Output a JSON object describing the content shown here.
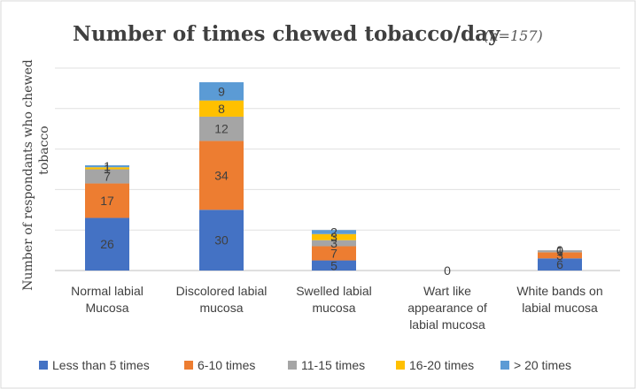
{
  "chart_data": {
    "type": "bar",
    "stacked": true,
    "title": "Number of times chewed tobacco/day",
    "subtitle": "(n=157)",
    "ylabel": "Number of respondants who chewed tobacco",
    "xlabel": "",
    "ylim": [
      0,
      100
    ],
    "grid": true,
    "legend_position": "bottom",
    "categories": [
      [
        "Normal labial",
        "Mucosa"
      ],
      [
        "Discolored labial",
        "mucosa"
      ],
      [
        "Swelled labial",
        "mucosa"
      ],
      [
        "Wart like",
        "appearance of",
        "labial mucosa"
      ],
      [
        "White bands on",
        "labial mucosa"
      ]
    ],
    "series": [
      {
        "name": "Less than 5 times",
        "color": "#4472c4",
        "values": [
          26,
          30,
          5,
          0,
          6
        ]
      },
      {
        "name": "6-10 times",
        "color": "#ed7d31",
        "values": [
          17,
          34,
          7,
          0,
          3
        ]
      },
      {
        "name": "11-15 times",
        "color": "#a5a5a5",
        "values": [
          7,
          12,
          3,
          0,
          1
        ]
      },
      {
        "name": "16-20 times",
        "color": "#ffc000",
        "values": [
          1,
          8,
          3,
          0,
          0
        ]
      },
      {
        "name": "> 20 times",
        "color": "#5b9bd5",
        "values": [
          1,
          9,
          2,
          0,
          0
        ]
      }
    ],
    "data_labels": [
      [
        "26",
        "30",
        "5",
        "0",
        "6"
      ],
      [
        "17",
        "34",
        "7",
        "",
        "3"
      ],
      [
        "7",
        "12",
        "3",
        "",
        "1"
      ],
      [
        "1",
        "8",
        "3",
        "",
        "0"
      ],
      [
        "1",
        "9",
        "2",
        "",
        "0"
      ]
    ]
  }
}
